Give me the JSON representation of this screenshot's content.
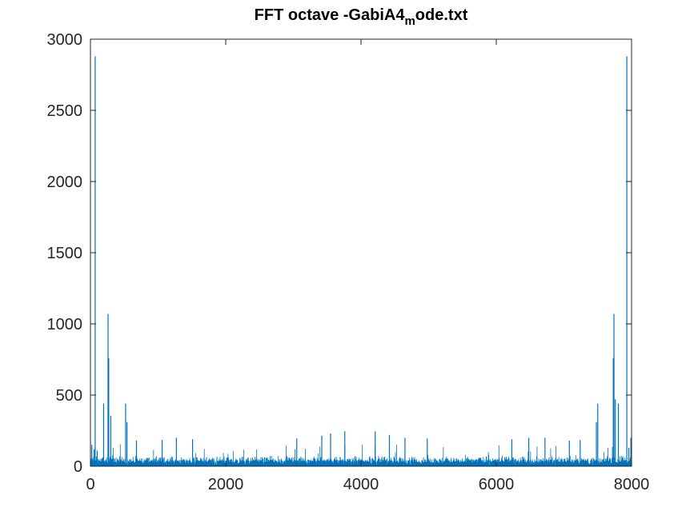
{
  "chart_data": {
    "type": "line",
    "title": "FFT octave -GabiA4",
    "title_subscript": "m",
    "title_suffix": "ode.txt",
    "xlabel": "",
    "ylabel": "",
    "xlim": [
      0,
      8000
    ],
    "ylim": [
      0,
      3000
    ],
    "xticks": [
      0,
      2000,
      4000,
      6000,
      8000
    ],
    "yticks": [
      0,
      500,
      1000,
      1500,
      2000,
      2500,
      3000
    ],
    "grid": false,
    "series_color": "#0072BD",
    "noise_floor": {
      "typical": 30,
      "typical_peaks_max": 160
    },
    "peaks": [
      {
        "x": 20,
        "y": 150
      },
      {
        "x": 55,
        "y": 120
      },
      {
        "x": 70,
        "y": 2880
      },
      {
        "x": 100,
        "y": 110
      },
      {
        "x": 195,
        "y": 440
      },
      {
        "x": 260,
        "y": 1070
      },
      {
        "x": 270,
        "y": 760
      },
      {
        "x": 300,
        "y": 355
      },
      {
        "x": 520,
        "y": 440
      },
      {
        "x": 540,
        "y": 310
      },
      {
        "x": 680,
        "y": 180
      },
      {
        "x": 1060,
        "y": 185
      },
      {
        "x": 1270,
        "y": 200
      },
      {
        "x": 1510,
        "y": 190
      },
      {
        "x": 3050,
        "y": 195
      },
      {
        "x": 3420,
        "y": 215
      },
      {
        "x": 3550,
        "y": 230
      },
      {
        "x": 3760,
        "y": 245
      },
      {
        "x": 4210,
        "y": 245
      },
      {
        "x": 4420,
        "y": 220
      },
      {
        "x": 4650,
        "y": 200
      },
      {
        "x": 4980,
        "y": 195
      },
      {
        "x": 6230,
        "y": 190
      },
      {
        "x": 6480,
        "y": 200
      },
      {
        "x": 6720,
        "y": 200
      },
      {
        "x": 7080,
        "y": 180
      },
      {
        "x": 7240,
        "y": 185
      },
      {
        "x": 7480,
        "y": 310
      },
      {
        "x": 7500,
        "y": 440
      },
      {
        "x": 7730,
        "y": 760
      },
      {
        "x": 7740,
        "y": 1070
      },
      {
        "x": 7760,
        "y": 470
      },
      {
        "x": 7805,
        "y": 440
      },
      {
        "x": 7930,
        "y": 2880
      },
      {
        "x": 7960,
        "y": 130
      },
      {
        "x": 7990,
        "y": 200
      }
    ]
  }
}
